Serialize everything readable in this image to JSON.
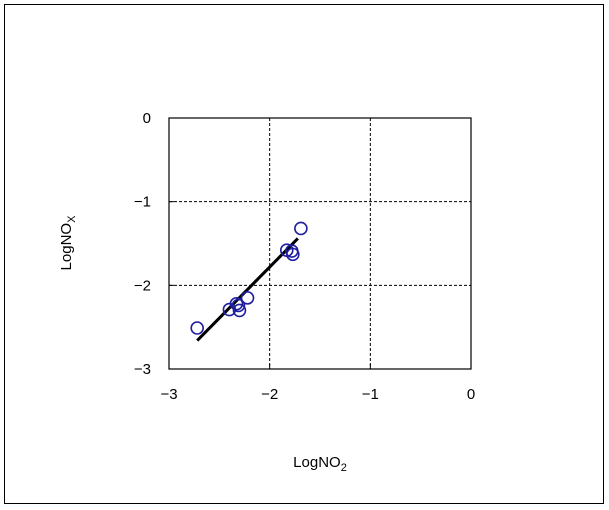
{
  "chart_data": {
    "type": "scatter",
    "title": "",
    "xlabel": {
      "base": "LogNO",
      "sub": "2"
    },
    "ylabel": {
      "base": "LogNO",
      "sub": "X"
    },
    "xlim": [
      -3,
      0
    ],
    "ylim": [
      -3,
      0
    ],
    "xticks": [
      -3,
      -2,
      -1,
      0
    ],
    "yticks": [
      -3,
      -2,
      -1,
      0
    ],
    "xtick_labels": [
      "−3",
      "−2",
      "−1",
      "0"
    ],
    "ytick_labels": [
      "−3",
      "−2",
      "−1",
      "0"
    ],
    "grid": true,
    "legend": "none",
    "marker_color": "#1f1fa0",
    "line_color": "#000000",
    "points": [
      {
        "x": -2.72,
        "y": -2.51
      },
      {
        "x": -2.4,
        "y": -2.29
      },
      {
        "x": -2.33,
        "y": -2.22
      },
      {
        "x": -2.3,
        "y": -2.3
      },
      {
        "x": -2.31,
        "y": -2.24
      },
      {
        "x": -2.22,
        "y": -2.15
      },
      {
        "x": -1.83,
        "y": -1.58
      },
      {
        "x": -1.78,
        "y": -1.59
      },
      {
        "x": -1.77,
        "y": -1.63
      },
      {
        "x": -1.69,
        "y": -1.32
      }
    ],
    "fit_line": {
      "x1": -2.72,
      "y1": -2.66,
      "x2": -1.72,
      "y2": -1.44
    }
  }
}
